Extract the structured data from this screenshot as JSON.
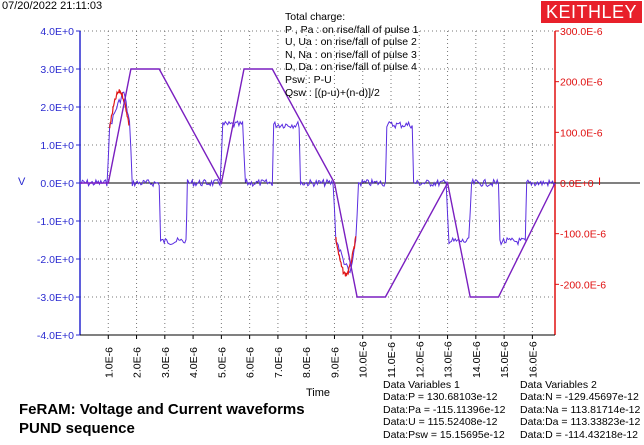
{
  "header": {
    "timestamp": "07/20/2022 21:11:03",
    "brand": "KEITHLEY"
  },
  "legend": {
    "title": "Total charge:",
    "lines": [
      "P , Pa   :  on rise/fall of pulse 1",
      "U, Ua   :  on rise/fall of pulse 2",
      "N, Na   :  on rise/fall of pulse 3",
      "D, Da   :  on rise/fall of pulse 4",
      "Psw :  P-U",
      "Qsw :  [(p-u)+(n-d)]/2"
    ]
  },
  "caption": {
    "line1": "FeRAM: Voltage and Current waveforms",
    "line2": "PUND sequence"
  },
  "data_variables_1": {
    "title": "Data Variables 1",
    "rows": [
      "Data:P = 130.68103e-12",
      "Data:Pa = -115.11396e-12",
      "Data:U = 115.52408e-12",
      "Data:Psw = 15.15695e-12"
    ]
  },
  "data_variables_2": {
    "title": "Data Variables 2",
    "rows": [
      "Data:N = -129.45697e-12",
      "Data:Na = 113.81714e-12",
      "Data:Da = 113.33823e-12",
      "Data:D = -114.43218e-12"
    ]
  },
  "chart_data": {
    "type": "line",
    "xlabel": "Time",
    "ylabel": "V",
    "y2label": "I",
    "xlim": [
      0,
      1.68e-05
    ],
    "ylim": [
      -4,
      4
    ],
    "y2lim": [
      -0.0003,
      0.0003
    ],
    "x_ticks": [
      "1.0E-6",
      "2.0E-6",
      "3.0E-6",
      "4.0E-6",
      "5.0E-6",
      "6.0E-6",
      "7.0E-6",
      "8.0E-6",
      "9.0E-6",
      "10.0E-6",
      "11.0E-6",
      "12.0E-6",
      "13.0E-6",
      "14.0E-6",
      "15.0E-6",
      "16.0E-6"
    ],
    "y_ticks": [
      "4.0E+0",
      "3.0E+0",
      "2.0E+0",
      "1.0E+0",
      "0.0E+0",
      "-1.0E+0",
      "-2.0E+0",
      "-3.0E+0",
      "-4.0E+0"
    ],
    "y2_ticks": [
      "300.0E-6",
      "200.0E-6",
      "100.0E-6",
      "0.0E+0",
      "-100.0E-6",
      "-200.0E-6"
    ],
    "grid": true,
    "colors": {
      "voltage": "#7a1fc0",
      "current": "#5a2de0",
      "current_alt": "#e01818",
      "left_axis": "#2a2ad0",
      "right_axis": "#e01010",
      "brand_bg": "#e8202a"
    },
    "series": [
      {
        "name": "V",
        "x": [
          0,
          1e-06,
          1.8e-06,
          2.8e-06,
          5e-06,
          5.8e-06,
          6.8e-06,
          9e-06,
          9.8e-06,
          1.08e-05,
          1.3e-05,
          1.38e-05,
          1.48e-05,
          1.68e-05
        ],
        "y": [
          0,
          0,
          3.0,
          3.0,
          0,
          3.0,
          3.0,
          0,
          -3.0,
          -3.0,
          0,
          -3.0,
          -3.0,
          0
        ]
      },
      {
        "name": "I",
        "x": [
          0,
          9.5e-07,
          1.05e-06,
          1.3e-06,
          1.55e-06,
          1.75e-06,
          1.85e-06,
          2.8e-06,
          2.85e-06,
          3.75e-06,
          3.8e-06,
          4.95e-06,
          5.05e-06,
          5.75e-06,
          5.85e-06,
          6.8e-06,
          6.85e-06,
          7.75e-06,
          7.8e-06,
          8.95e-06,
          9.05e-06,
          9.3e-06,
          9.55e-06,
          9.75e-06,
          9.85e-06,
          1.08e-05,
          1.085e-05,
          1.175e-05,
          1.18e-05,
          1.295e-05,
          1.305e-05,
          1.375e-05,
          1.385e-05,
          1.48e-05,
          1.485e-05,
          1.575e-05,
          1.58e-05,
          1.68e-05
        ],
        "y": [
          0,
          0,
          0.00011,
          0.00015,
          0.00018,
          0.00012,
          0,
          0,
          -0.000115,
          -0.000115,
          0,
          0,
          0.000115,
          0.000115,
          0,
          0,
          0.000115,
          0.000115,
          0,
          0,
          -0.00011,
          -0.00015,
          -0.00018,
          -0.00012,
          0,
          0,
          0.000115,
          0.000115,
          0,
          0,
          -0.000115,
          -0.000115,
          0,
          0,
          -0.000115,
          -0.000115,
          0,
          0
        ]
      }
    ]
  }
}
